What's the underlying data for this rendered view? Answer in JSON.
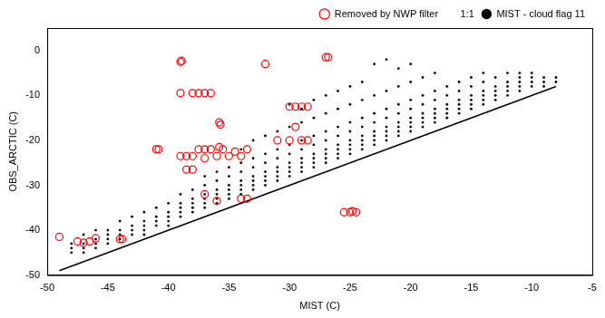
{
  "chart_data": {
    "type": "scatter",
    "x_label": "MIST (C)",
    "y_label": "OBS_ARCTIC (C)",
    "xlim": [
      -50,
      -5
    ],
    "xticks": [
      -50,
      -45,
      -40,
      -35,
      -30,
      -25,
      -20,
      -15,
      -10,
      -5
    ],
    "ylim": [
      -50,
      5
    ],
    "yticks": [
      -50,
      -40,
      -30,
      -20,
      -10,
      0
    ],
    "grid": false,
    "legend": "top-right",
    "series": [
      {
        "name": "Removed by NWP filter",
        "color": "#ff0000",
        "marker": "circle-open",
        "x": [
          -49,
          -47.5,
          -47,
          -46.5,
          -46,
          -44,
          -43.8,
          -39,
          -38.9,
          -32,
          -27,
          -26.8,
          -39,
          -38,
          -37.5,
          -37,
          -36.5,
          -41,
          -40.8,
          -39,
          -38.5,
          -38,
          -37.5,
          -37,
          -36.5,
          -36,
          -35,
          -34.5,
          -34,
          -33.5,
          -38.5,
          -38,
          -35.8,
          -35.7,
          -37,
          -35.8,
          -35.5,
          -30,
          -29.5,
          -29,
          -28.5,
          -29.5,
          -31,
          -30,
          -29,
          -28.5,
          -34,
          -33.5,
          -25.5,
          -25,
          -24.5,
          -24.8,
          -37,
          -36
        ],
        "values": [
          -41.5,
          -42.5,
          -42.8,
          -42.5,
          -41.8,
          -42,
          -42,
          -2.5,
          -2.3,
          -3,
          -1.5,
          -1.5,
          -9.5,
          -9.5,
          -9.5,
          -9.5,
          -9.5,
          -22,
          -22,
          -23.5,
          -23.5,
          -23.5,
          -22,
          -22,
          -22,
          -23.5,
          -23.5,
          -22.5,
          -23.5,
          -22,
          -26.5,
          -26.5,
          -16,
          -16.5,
          -24,
          -21.5,
          -22,
          -12.5,
          -12.5,
          -12.5,
          -12.5,
          -17,
          -20,
          -20,
          -20,
          -20,
          -33,
          -33,
          -36,
          -36,
          -36,
          -35.8,
          -32,
          -33.5
        ]
      },
      {
        "name": "MIST - cloud flag 11",
        "color": "#000000",
        "marker": "dot",
        "x": [
          -48,
          -48,
          -48,
          -47,
          -47,
          -47,
          -47,
          -46,
          -46,
          -46,
          -46,
          -45,
          -45,
          -45,
          -45,
          -44,
          -44,
          -44,
          -44,
          -43,
          -43,
          -43,
          -43,
          -42,
          -42,
          -42,
          -42,
          -42,
          -41,
          -41,
          -41,
          -41,
          -40,
          -40,
          -40,
          -40,
          -40,
          -39,
          -39,
          -39,
          -39,
          -39,
          -38,
          -38,
          -38,
          -38,
          -38,
          -37,
          -37,
          -37,
          -37,
          -37,
          -37,
          -36,
          -36,
          -36,
          -36,
          -36,
          -36,
          -35,
          -35,
          -35,
          -35,
          -35,
          -35,
          -34,
          -34,
          -34,
          -34,
          -34,
          -34,
          -34,
          -33,
          -33,
          -33,
          -33,
          -33,
          -33,
          -33,
          -32,
          -32,
          -32,
          -32,
          -32,
          -32,
          -32,
          -31,
          -31,
          -31,
          -31,
          -31,
          -31,
          -31,
          -30,
          -30,
          -30,
          -30,
          -30,
          -30,
          -30,
          -30,
          -29,
          -29,
          -29,
          -29,
          -29,
          -29,
          -29,
          -29,
          -28,
          -28,
          -28,
          -28,
          -28,
          -28,
          -28,
          -28,
          -27,
          -27,
          -27,
          -27,
          -27,
          -27,
          -27,
          -27,
          -26,
          -26,
          -26,
          -26,
          -26,
          -26,
          -26,
          -26,
          -25,
          -25,
          -25,
          -25,
          -25,
          -25,
          -25,
          -25,
          -24,
          -24,
          -24,
          -24,
          -24,
          -24,
          -24,
          -24,
          -23,
          -23,
          -23,
          -23,
          -23,
          -23,
          -23,
          -23,
          -22,
          -22,
          -22,
          -22,
          -22,
          -22,
          -22,
          -22,
          -21,
          -21,
          -21,
          -21,
          -21,
          -21,
          -21,
          -21,
          -20,
          -20,
          -20,
          -20,
          -20,
          -20,
          -20,
          -20,
          -19,
          -19,
          -19,
          -19,
          -19,
          -19,
          -19,
          -18,
          -18,
          -18,
          -18,
          -18,
          -18,
          -18,
          -17,
          -17,
          -17,
          -17,
          -17,
          -17,
          -16,
          -16,
          -16,
          -16,
          -16,
          -16,
          -15,
          -15,
          -15,
          -15,
          -15,
          -15,
          -14,
          -14,
          -14,
          -14,
          -14,
          -14,
          -13,
          -13,
          -13,
          -13,
          -13,
          -12,
          -12,
          -12,
          -12,
          -12,
          -11,
          -11,
          -11,
          -11,
          -11,
          -10,
          -10,
          -10,
          -10,
          -9,
          -9,
          -9,
          -8,
          -8
        ],
        "values": [
          -45,
          -44,
          -43,
          -44,
          -43,
          -45,
          -41,
          -43,
          -42,
          -44,
          -40,
          -42,
          -41,
          -43,
          -40,
          -41,
          -42,
          -40,
          -38,
          -40,
          -39,
          -41,
          -37,
          -39,
          -38,
          -40,
          -36,
          -41,
          -38,
          -37,
          -39,
          -35,
          -37,
          -36,
          -38,
          -34,
          -39,
          -36,
          -35,
          -34,
          -37,
          -32,
          -35,
          -34,
          -33,
          -36,
          -31,
          -34,
          -33,
          -32,
          -35,
          -30,
          -28,
          -33,
          -32,
          -31,
          -34,
          -29,
          -27,
          -32,
          -31,
          -30,
          -33,
          -28,
          -26,
          -31,
          -30,
          -29,
          -32,
          -27,
          -25,
          -22,
          -31,
          -30,
          -29,
          -28,
          -26,
          -24,
          -20,
          -30,
          -29,
          -28,
          -27,
          -25,
          -23,
          -19,
          -29,
          -28,
          -27,
          -26,
          -24,
          -22,
          -18,
          -28,
          -27,
          -26,
          -25,
          -23,
          -21,
          -17,
          -12,
          -27,
          -26,
          -25,
          -24,
          -22,
          -20,
          -16,
          -13,
          -26,
          -25,
          -24,
          -23,
          -21,
          -19,
          -15,
          -11,
          -25,
          -24,
          -23,
          -22,
          -20,
          -18,
          -14,
          -10,
          -24,
          -23,
          -22,
          -21,
          -19,
          -17,
          -13,
          -9,
          -23,
          -22,
          -21,
          -20,
          -18,
          -16,
          -12,
          -8,
          -22,
          -21,
          -20,
          -19,
          -17,
          -15,
          -11,
          -7,
          -21,
          -20,
          -19,
          -18,
          -16,
          -14,
          -10,
          -3,
          -20,
          -19,
          -18,
          -17,
          -15,
          -13,
          -9,
          -2,
          -19,
          -18,
          -17,
          -16,
          -14,
          -12,
          -8,
          -4,
          -18,
          -17,
          -16,
          -15,
          -13,
          -11,
          -7,
          -3,
          -17,
          -16,
          -15,
          -14,
          -12,
          -10,
          -6,
          -16,
          -15,
          -14,
          -13,
          -11,
          -9,
          -5,
          -15,
          -14,
          -13,
          -12,
          -10,
          -8,
          -14,
          -13,
          -12,
          -11,
          -9,
          -7,
          -13,
          -12,
          -11,
          -10,
          -8,
          -6,
          -12,
          -11,
          -10,
          -9,
          -7,
          -5,
          -11,
          -10,
          -9,
          -8,
          -6,
          -10,
          -9,
          -8,
          -7,
          -5,
          -9,
          -8,
          -7,
          -6,
          -5,
          -8,
          -7,
          -6,
          -5,
          -8,
          -7,
          -6,
          -7,
          -6
        ]
      },
      {
        "name": "1:1",
        "color": "#000000",
        "type": "line",
        "line_style": "solid",
        "x": [
          -49,
          -8
        ],
        "values": [
          -49,
          -8
        ]
      }
    ]
  }
}
